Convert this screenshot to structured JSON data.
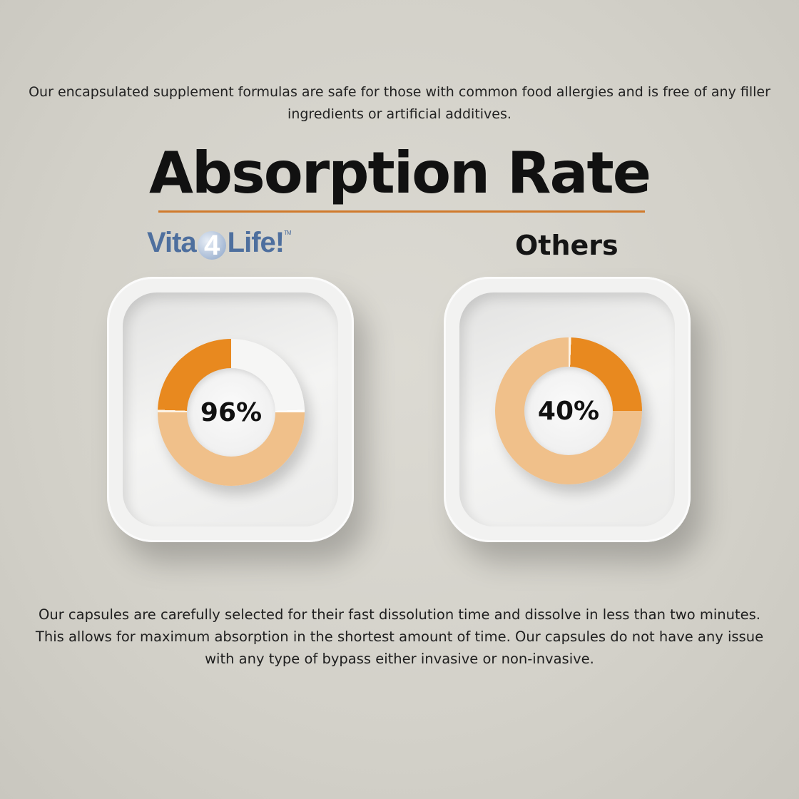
{
  "intro_text": "Our encapsulated supplement formulas are safe for those with common food allergies and is free of any filler ingredients or artificial additives.",
  "title": "Absorption Rate",
  "brand": {
    "prefix": "Vita",
    "number": "4",
    "suffix": "Life!",
    "tm": "TM"
  },
  "others_label": "Others",
  "gauges": [
    {
      "label": "96%",
      "value": 96
    },
    {
      "label": "40%",
      "value": 40
    }
  ],
  "colors": {
    "accent": "#e8891f",
    "light_orange": "#f0c08a",
    "rule": "#d07a2c",
    "brand_blue": "#4e6f9e"
  },
  "outro_text": "Our capsules are carefully selected for their fast dissolution time and dissolve in less than two minutes. This allows for maximum absorption in the shortest amount of time. Our capsules do not have any issue with any type of bypass either invasive or non-invasive."
}
